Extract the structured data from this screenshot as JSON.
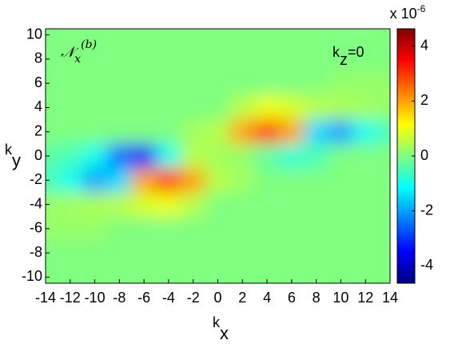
{
  "chart_data": {
    "type": "heatmap",
    "annotation": {
      "symbol": "𝒩",
      "subscript": "x",
      "superscript": "(b)"
    },
    "label": {
      "base": "k",
      "subscript": "z",
      "rest": "=0"
    },
    "xlabel": {
      "base": "k",
      "subscript": "x"
    },
    "ylabel": {
      "base": "k",
      "subscript": "y"
    },
    "colorbar_label": "x 10",
    "colorbar_exponent": "-6",
    "x": [
      -14,
      -12,
      -10,
      -8,
      -6,
      -4,
      -2,
      0,
      2,
      4,
      6,
      8,
      10,
      12,
      14
    ],
    "y": [
      10,
      8,
      6,
      4,
      2,
      0,
      -2,
      -4,
      -6,
      -8,
      -10
    ],
    "z": [
      [
        0,
        0,
        0,
        0,
        0,
        0,
        0,
        0,
        0,
        0,
        0,
        0,
        0,
        0,
        0
      ],
      [
        0,
        0,
        0,
        0,
        0,
        0,
        0,
        0,
        0,
        0,
        0,
        0,
        0,
        0,
        0
      ],
      [
        0,
        0,
        0,
        0,
        0,
        0,
        0,
        0,
        0,
        0,
        0,
        0,
        0.2,
        0.2,
        0.2
      ],
      [
        0,
        0,
        0,
        0,
        0,
        0,
        0,
        0,
        0.5,
        1.0,
        0.8,
        0.5,
        0.4,
        0.3,
        0.2
      ],
      [
        0,
        0,
        0,
        0,
        0,
        0,
        0.3,
        0.5,
        2.0,
        3.0,
        2.0,
        -1.5,
        -2.0,
        -1.0,
        -0.5
      ],
      [
        -0.3,
        -0.5,
        -1.0,
        -2.5,
        -3.5,
        -1.0,
        0.5,
        0.3,
        0.2,
        -0.3,
        -0.8,
        -0.5,
        0,
        0,
        0
      ],
      [
        -0.5,
        -1.0,
        -2.0,
        -1.5,
        2.0,
        3.0,
        2.0,
        0.5,
        0.3,
        0,
        0,
        0,
        0,
        0,
        0
      ],
      [
        0.2,
        0.3,
        0.4,
        0.5,
        0.8,
        1.0,
        0.5,
        0,
        0,
        0,
        0,
        0,
        0,
        0,
        0
      ],
      [
        0.2,
        0.2,
        0.2,
        0,
        0,
        0,
        0,
        0,
        0,
        0,
        0,
        0,
        0,
        0,
        0
      ],
      [
        0,
        0,
        0,
        0,
        0,
        0,
        0,
        0,
        0,
        0,
        0,
        0,
        0,
        0,
        0
      ],
      [
        0,
        0,
        0,
        0,
        0,
        0,
        0,
        0,
        0,
        0,
        0,
        0,
        0,
        0,
        0
      ]
    ],
    "xlim": [
      -14,
      14
    ],
    "ylim": [
      -10.5,
      10.5
    ],
    "xticks": [
      -14,
      -12,
      -10,
      -8,
      -6,
      -4,
      -2,
      0,
      2,
      4,
      6,
      8,
      10,
      12,
      14
    ],
    "yticks": [
      -10,
      -8,
      -6,
      -4,
      -2,
      0,
      2,
      4,
      6,
      8,
      10
    ],
    "clim": [
      -4.63,
      4.63
    ],
    "cticks": [
      -4,
      -2,
      0,
      2,
      4
    ],
    "colormap": "jet"
  }
}
